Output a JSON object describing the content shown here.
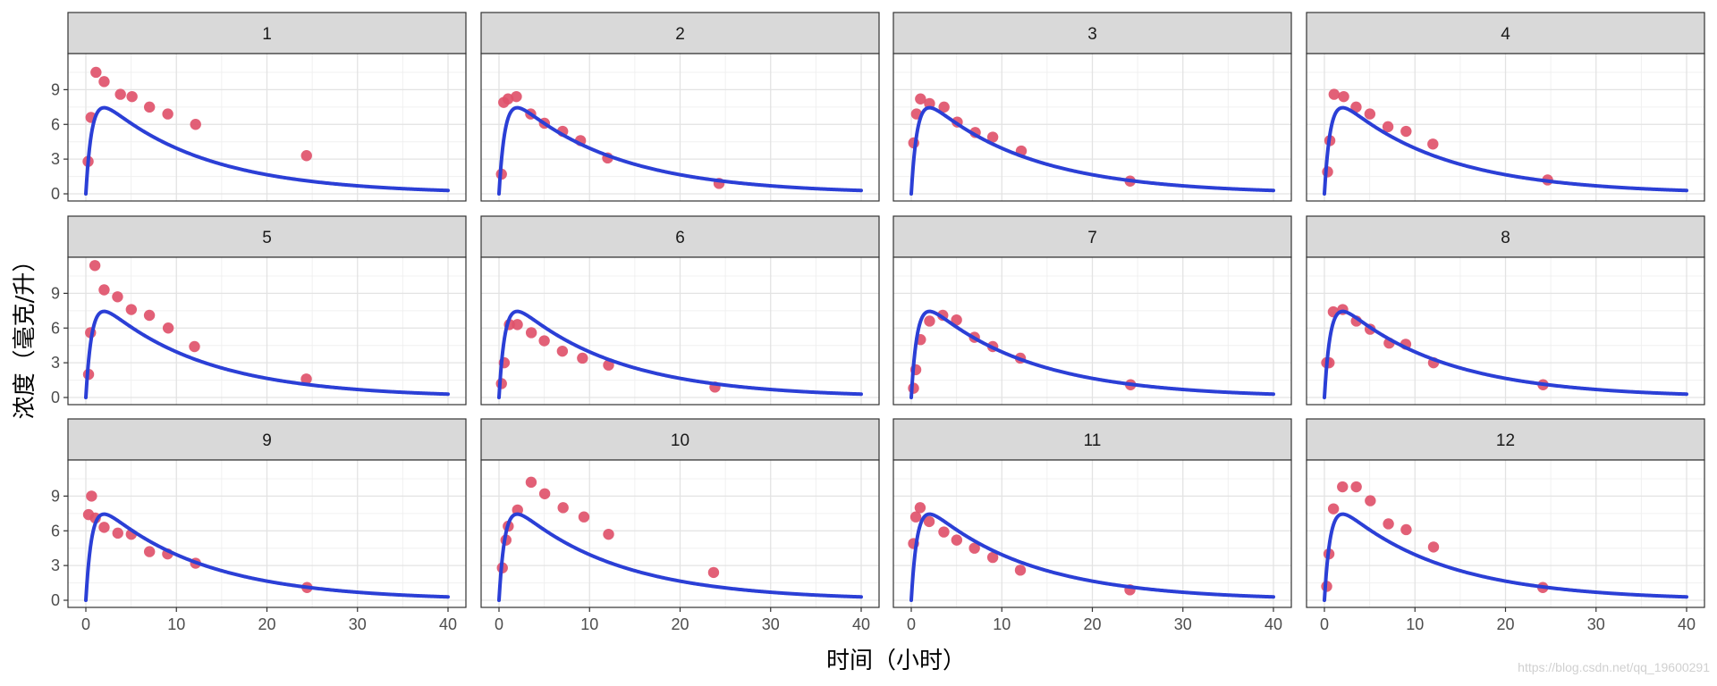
{
  "chart_data": {
    "type": "scatter",
    "layout": "facet-grid",
    "facet_rows": 3,
    "facet_cols": 4,
    "xlabel": "时间（小时）",
    "ylabel": "浓度（毫克/升）",
    "xlim": [
      0,
      40
    ],
    "ylim": [
      0,
      11.5
    ],
    "x_ticks": [
      0,
      10,
      20,
      30,
      40
    ],
    "y_ticks": [
      0,
      3,
      6,
      9
    ],
    "grid": true,
    "theme": "bw",
    "point_color": "#e0536b",
    "line_color": "#2b3fd6",
    "fitted_curve": {
      "model": "one-compartment-first-order-absorption",
      "ka": 1.5,
      "ke": 0.087,
      "scale": 9.41,
      "samples": [
        {
          "x": 0,
          "y": 0
        },
        {
          "x": 0.5,
          "y": 4.84
        },
        {
          "x": 1,
          "y": 6.87
        },
        {
          "x": 1.5,
          "y": 7.66
        },
        {
          "x": 2,
          "y": 7.91
        },
        {
          "x": 3,
          "y": 7.73
        },
        {
          "x": 4,
          "y": 7.3
        },
        {
          "x": 6,
          "y": 6.35
        },
        {
          "x": 8,
          "y": 5.37
        },
        {
          "x": 10,
          "y": 4.6
        },
        {
          "x": 15,
          "y": 2.98
        },
        {
          "x": 20,
          "y": 1.97
        },
        {
          "x": 25,
          "y": 1.3
        },
        {
          "x": 30,
          "y": 0.85
        },
        {
          "x": 35,
          "y": 0.55
        },
        {
          "x": 40,
          "y": 0.35
        }
      ]
    },
    "panels": [
      {
        "label": "1",
        "points": [
          {
            "x": 0.25,
            "y": 2.8
          },
          {
            "x": 0.57,
            "y": 6.6
          },
          {
            "x": 1.12,
            "y": 10.5
          },
          {
            "x": 2.02,
            "y": 9.7
          },
          {
            "x": 3.82,
            "y": 8.6
          },
          {
            "x": 5.1,
            "y": 8.4
          },
          {
            "x": 7.03,
            "y": 7.5
          },
          {
            "x": 9.05,
            "y": 6.9
          },
          {
            "x": 12.12,
            "y": 6.0
          },
          {
            "x": 24.37,
            "y": 3.3
          }
        ]
      },
      {
        "label": "2",
        "points": [
          {
            "x": 0.27,
            "y": 1.7
          },
          {
            "x": 0.52,
            "y": 7.9
          },
          {
            "x": 1.0,
            "y": 8.2
          },
          {
            "x": 1.92,
            "y": 8.4
          },
          {
            "x": 3.5,
            "y": 6.9
          },
          {
            "x": 5.02,
            "y": 6.1
          },
          {
            "x": 7.03,
            "y": 5.4
          },
          {
            "x": 9.0,
            "y": 4.6
          },
          {
            "x": 12.0,
            "y": 3.1
          },
          {
            "x": 24.3,
            "y": 0.9
          }
        ]
      },
      {
        "label": "3",
        "points": [
          {
            "x": 0.27,
            "y": 4.4
          },
          {
            "x": 0.58,
            "y": 6.9
          },
          {
            "x": 1.02,
            "y": 8.2
          },
          {
            "x": 2.02,
            "y": 7.8
          },
          {
            "x": 3.62,
            "y": 7.5
          },
          {
            "x": 5.08,
            "y": 6.2
          },
          {
            "x": 7.07,
            "y": 5.3
          },
          {
            "x": 9.0,
            "y": 4.9
          },
          {
            "x": 12.15,
            "y": 3.7
          },
          {
            "x": 24.17,
            "y": 1.1
          }
        ]
      },
      {
        "label": "4",
        "points": [
          {
            "x": 0.35,
            "y": 1.9
          },
          {
            "x": 0.6,
            "y": 4.6
          },
          {
            "x": 1.07,
            "y": 8.6
          },
          {
            "x": 2.13,
            "y": 8.4
          },
          {
            "x": 3.5,
            "y": 7.5
          },
          {
            "x": 5.02,
            "y": 6.9
          },
          {
            "x": 7.02,
            "y": 5.8
          },
          {
            "x": 9.02,
            "y": 5.4
          },
          {
            "x": 11.98,
            "y": 4.3
          },
          {
            "x": 24.65,
            "y": 1.2
          }
        ]
      },
      {
        "label": "5",
        "points": [
          {
            "x": 0.3,
            "y": 2.0
          },
          {
            "x": 0.52,
            "y": 5.6
          },
          {
            "x": 1.0,
            "y": 11.4
          },
          {
            "x": 2.02,
            "y": 9.3
          },
          {
            "x": 3.5,
            "y": 8.7
          },
          {
            "x": 5.02,
            "y": 7.6
          },
          {
            "x": 7.02,
            "y": 7.1
          },
          {
            "x": 9.1,
            "y": 6.0
          },
          {
            "x": 12.0,
            "y": 4.4
          },
          {
            "x": 24.35,
            "y": 1.6
          }
        ]
      },
      {
        "label": "6",
        "points": [
          {
            "x": 0.27,
            "y": 1.2
          },
          {
            "x": 0.58,
            "y": 3.0
          },
          {
            "x": 1.15,
            "y": 6.3
          },
          {
            "x": 2.03,
            "y": 6.3
          },
          {
            "x": 3.57,
            "y": 5.6
          },
          {
            "x": 5.0,
            "y": 4.9
          },
          {
            "x": 7.0,
            "y": 4.0
          },
          {
            "x": 9.22,
            "y": 3.4
          },
          {
            "x": 12.1,
            "y": 2.8
          },
          {
            "x": 23.85,
            "y": 0.9
          }
        ]
      },
      {
        "label": "7",
        "points": [
          {
            "x": 0.25,
            "y": 0.8
          },
          {
            "x": 0.5,
            "y": 2.4
          },
          {
            "x": 1.02,
            "y": 5.0
          },
          {
            "x": 2.02,
            "y": 6.6
          },
          {
            "x": 3.48,
            "y": 7.1
          },
          {
            "x": 5.0,
            "y": 6.7
          },
          {
            "x": 6.98,
            "y": 5.2
          },
          {
            "x": 9.0,
            "y": 4.4
          },
          {
            "x": 12.05,
            "y": 3.4
          },
          {
            "x": 24.22,
            "y": 1.1
          }
        ]
      },
      {
        "label": "8",
        "points": [
          {
            "x": 0.25,
            "y": 3.0
          },
          {
            "x": 0.52,
            "y": 3.0
          },
          {
            "x": 0.98,
            "y": 7.4
          },
          {
            "x": 2.02,
            "y": 7.6
          },
          {
            "x": 3.53,
            "y": 6.6
          },
          {
            "x": 5.05,
            "y": 5.9
          },
          {
            "x": 7.15,
            "y": 4.7
          },
          {
            "x": 8.98,
            "y": 4.6
          },
          {
            "x": 12.05,
            "y": 3.0
          },
          {
            "x": 24.15,
            "y": 1.1
          }
        ]
      },
      {
        "label": "9",
        "points": [
          {
            "x": 0.3,
            "y": 7.4
          },
          {
            "x": 0.63,
            "y": 9.0
          },
          {
            "x": 1.05,
            "y": 7.1
          },
          {
            "x": 2.02,
            "y": 6.3
          },
          {
            "x": 3.53,
            "y": 5.8
          },
          {
            "x": 5.02,
            "y": 5.7
          },
          {
            "x": 7.03,
            "y": 4.2
          },
          {
            "x": 9.03,
            "y": 4.0
          },
          {
            "x": 12.12,
            "y": 3.2
          },
          {
            "x": 24.43,
            "y": 1.1
          }
        ]
      },
      {
        "label": "10",
        "points": [
          {
            "x": 0.37,
            "y": 2.8
          },
          {
            "x": 0.77,
            "y": 5.2
          },
          {
            "x": 1.02,
            "y": 6.4
          },
          {
            "x": 2.05,
            "y": 7.8
          },
          {
            "x": 3.55,
            "y": 10.2
          },
          {
            "x": 5.05,
            "y": 9.2
          },
          {
            "x": 7.08,
            "y": 8.0
          },
          {
            "x": 9.38,
            "y": 7.2
          },
          {
            "x": 12.1,
            "y": 5.7
          },
          {
            "x": 23.7,
            "y": 2.4
          }
        ]
      },
      {
        "label": "11",
        "points": [
          {
            "x": 0.25,
            "y": 4.9
          },
          {
            "x": 0.5,
            "y": 7.2
          },
          {
            "x": 0.98,
            "y": 8.0
          },
          {
            "x": 1.98,
            "y": 6.8
          },
          {
            "x": 3.6,
            "y": 5.9
          },
          {
            "x": 5.02,
            "y": 5.2
          },
          {
            "x": 6.98,
            "y": 4.5
          },
          {
            "x": 9.0,
            "y": 3.7
          },
          {
            "x": 12.05,
            "y": 2.6
          },
          {
            "x": 24.15,
            "y": 0.9
          }
        ]
      },
      {
        "label": "12",
        "points": [
          {
            "x": 0.25,
            "y": 1.2
          },
          {
            "x": 0.5,
            "y": 4.0
          },
          {
            "x": 1.0,
            "y": 7.9
          },
          {
            "x": 2.0,
            "y": 9.8
          },
          {
            "x": 3.52,
            "y": 9.8
          },
          {
            "x": 5.07,
            "y": 8.6
          },
          {
            "x": 7.07,
            "y": 6.6
          },
          {
            "x": 9.03,
            "y": 6.1
          },
          {
            "x": 12.05,
            "y": 4.6
          },
          {
            "x": 24.12,
            "y": 1.1
          }
        ]
      }
    ]
  },
  "watermark": "https://blog.csdn.net/qq_19600291"
}
